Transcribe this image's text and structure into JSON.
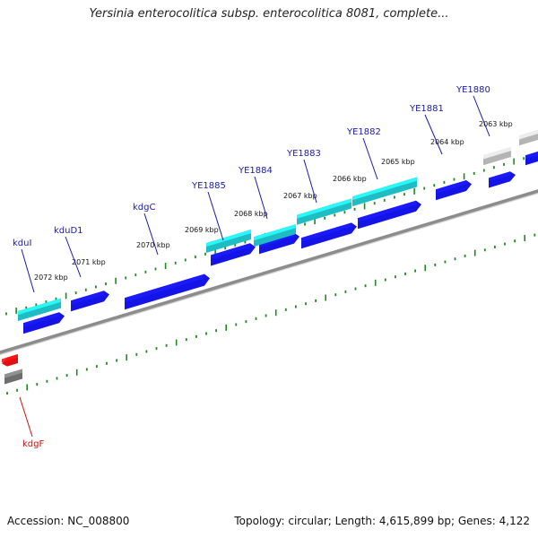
{
  "title": "Yersinia enterocolitica subsp. enterocolitica 8081, complete...",
  "footer": {
    "accession": "Accession: NC_008800",
    "summary": "Topology: circular; Length: 4,615,899 bp; Genes: 4,122"
  },
  "colors": {
    "gene_blue": "#1414e6",
    "gene_cyan": "#1fbcc4",
    "gene_grey": "#b4b4b4",
    "gene_red": "#e01010",
    "tick_green": "#1f8a1f",
    "backbone": "#8c8c8c",
    "label_blue": "#1a1aaa",
    "label_red": "#d01010"
  },
  "scale_ticks": [
    {
      "label": "2072 kbp"
    },
    {
      "label": "2071 kbp"
    },
    {
      "label": "2070 kbp"
    },
    {
      "label": "2069 kbp"
    },
    {
      "label": "2068 kbp"
    },
    {
      "label": "2067 kbp"
    },
    {
      "label": "2066 kbp"
    },
    {
      "label": "2065 kbp"
    },
    {
      "label": "2064 kbp"
    },
    {
      "label": "2063 kbp"
    }
  ],
  "gene_labels": [
    {
      "name": "kduI"
    },
    {
      "name": "kduD1"
    },
    {
      "name": "kdgC"
    },
    {
      "name": "YE1885"
    },
    {
      "name": "YE1884"
    },
    {
      "name": "YE1883"
    },
    {
      "name": "YE1882"
    },
    {
      "name": "YE1881"
    },
    {
      "name": "YE1880"
    },
    {
      "name": "kdgF"
    }
  ]
}
